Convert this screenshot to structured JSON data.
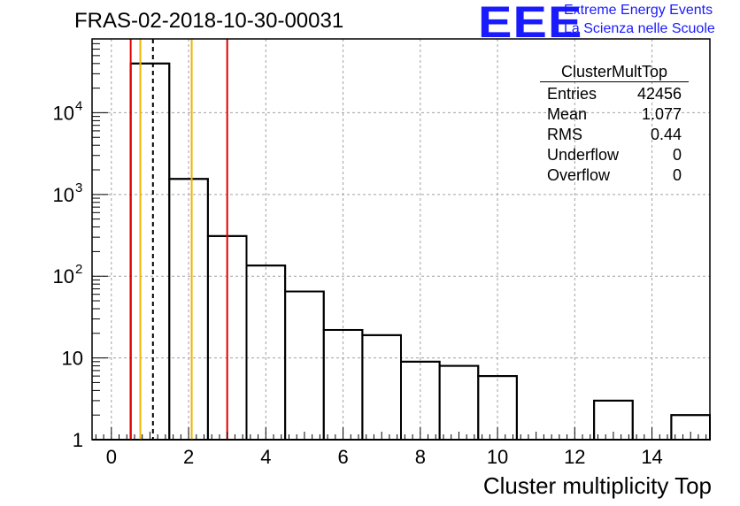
{
  "header": {
    "title": "FRAS-02-2018-10-30-00031"
  },
  "logo": {
    "mark": "EEE",
    "line1": "Extreme Energy Events",
    "line2": "La Scienza nelle Scuole"
  },
  "stats": {
    "title": "ClusterMultTop",
    "rows": [
      {
        "label": "Entries",
        "value": "42456"
      },
      {
        "label": "Mean",
        "value": "1.077"
      },
      {
        "label": "RMS",
        "value": "0.44"
      },
      {
        "label": "Underflow",
        "value": "0"
      },
      {
        "label": "Overflow",
        "value": "0"
      }
    ]
  },
  "chart_data": {
    "type": "histogram",
    "title": "FRAS-02-2018-10-30-00031",
    "xlabel": "Cluster multiplicity Top",
    "ylabel": "",
    "yscale": "log",
    "xlim": [
      -0.5,
      15.5
    ],
    "ylim": [
      1,
      80000
    ],
    "grid": true,
    "bin_width": 1,
    "bin_centers": [
      0,
      1,
      2,
      3,
      4,
      5,
      6,
      7,
      8,
      9,
      10,
      11,
      12,
      13,
      14,
      15
    ],
    "values": [
      1,
      40000,
      1550,
      310,
      135,
      65,
      22,
      19,
      9,
      8,
      6,
      1,
      1,
      3,
      1,
      2
    ],
    "x_ticks": [
      0,
      2,
      4,
      6,
      8,
      10,
      12,
      14
    ],
    "y_ticks": [
      {
        "value": 1,
        "label": "1"
      },
      {
        "value": 10,
        "label": "10"
      },
      {
        "value": 100,
        "label": "10",
        "exp": "2"
      },
      {
        "value": 1000,
        "label": "10",
        "exp": "3"
      },
      {
        "value": 10000,
        "label": "10",
        "exp": "4"
      }
    ],
    "vertical_lines": [
      {
        "x": 0.5,
        "color": "#e00000",
        "style": "solid"
      },
      {
        "x": 0.75,
        "color": "#f0b400",
        "style": "solid"
      },
      {
        "x": 1.077,
        "color": "#000000",
        "style": "dashed"
      },
      {
        "x": 2.08,
        "color": "#f0b400",
        "style": "solid"
      },
      {
        "x": 3.0,
        "color": "#e00000",
        "style": "solid"
      }
    ]
  }
}
